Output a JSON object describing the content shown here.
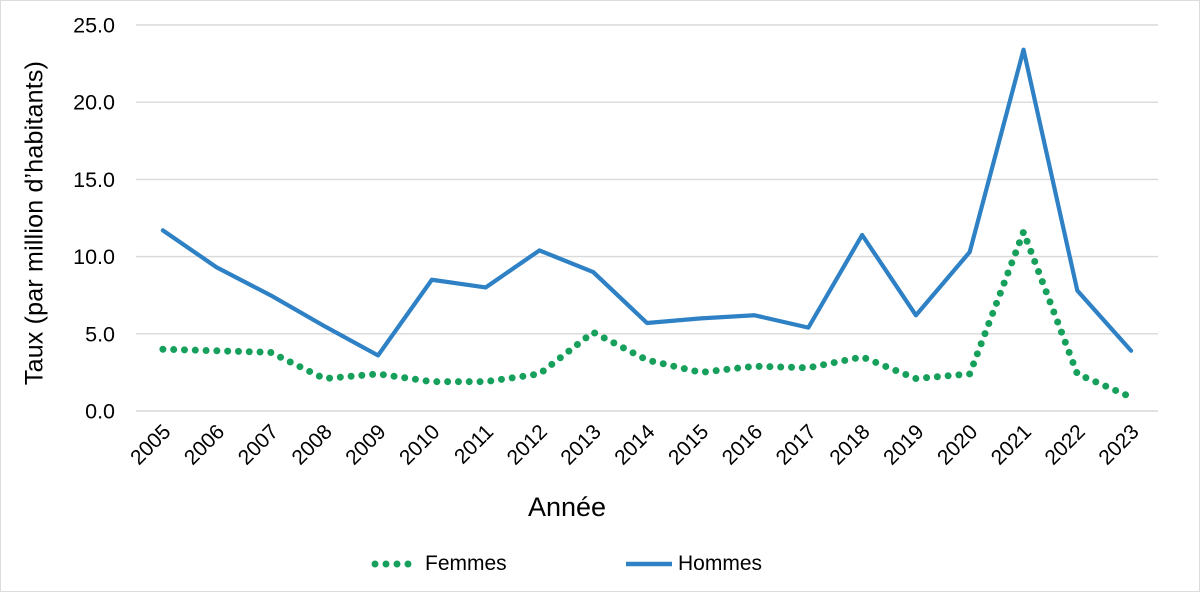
{
  "chart_data": {
    "type": "line",
    "xlabel": "Année",
    "ylabel": "Taux (par million d’habitants)",
    "categories": [
      "2005",
      "2006",
      "2007",
      "2008",
      "2009",
      "2010",
      "2011",
      "2012",
      "2013",
      "2014",
      "2015",
      "2016",
      "2017",
      "2018",
      "2019",
      "2020",
      "2021",
      "2022",
      "2023"
    ],
    "series": [
      {
        "name": "Femmes",
        "style": "dotted",
        "color": "#16A05C",
        "values": [
          4.0,
          3.9,
          3.8,
          2.1,
          2.4,
          1.9,
          1.9,
          2.4,
          5.1,
          3.3,
          2.5,
          2.9,
          2.8,
          3.5,
          2.1,
          2.4,
          11.6,
          2.4,
          0.9
        ]
      },
      {
        "name": "Hommes",
        "style": "solid",
        "color": "#2E81C4",
        "values": [
          11.7,
          9.3,
          7.5,
          5.5,
          3.6,
          8.5,
          8.0,
          10.4,
          9.0,
          5.7,
          6.0,
          6.2,
          5.4,
          11.4,
          6.2,
          10.3,
          23.4,
          7.8,
          3.9
        ]
      }
    ],
    "ylim": [
      0,
      25
    ],
    "yticks": [
      "0.0",
      "5.0",
      "10.0",
      "15.0",
      "20.0",
      "25.0"
    ],
    "grid": true,
    "legend_position": "bottom"
  },
  "colors": {
    "gridline": "#D9D9D9",
    "text": "#000000"
  }
}
